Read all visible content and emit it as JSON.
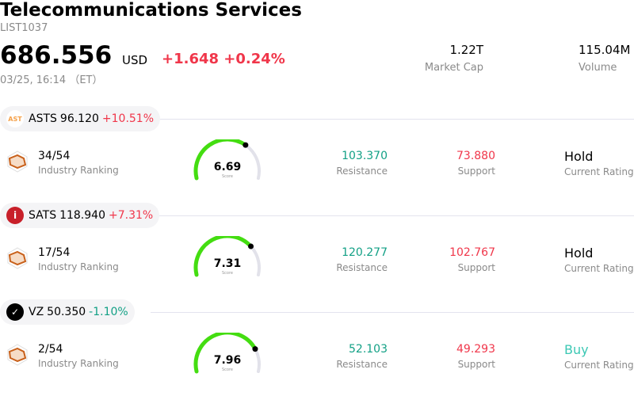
{
  "header": {
    "title": "Telecommunications Services",
    "code": "LIST1037",
    "price": "686.556",
    "currency": "USD",
    "change": "+1.648 +0.24%",
    "time": "03/25, 16:14 （ET）",
    "market_cap": "1.22T",
    "market_cap_label": "Market Cap",
    "volume": "115.04M",
    "volume_label": "Volume"
  },
  "colors": {
    "up": "#f0364a",
    "down": "#12a085",
    "gauge": "#44dd11",
    "gauge_track": "#e2e2ea",
    "buy": "#3cc8b4"
  },
  "labels": {
    "industry_ranking": "Industry Ranking",
    "score": "Score",
    "resistance": "Resistance",
    "support": "Support",
    "current_rating": "Current Rating"
  },
  "stocks": [
    {
      "ticker": "ASTS",
      "price": "96.120",
      "change": "+10.51%",
      "direction": "up",
      "logo": "AST",
      "rank": "34/54",
      "score": "6.69",
      "score_value": 6.69,
      "resistance": "103.370",
      "support": "73.880",
      "rating": "Hold"
    },
    {
      "ticker": "SATS",
      "price": "118.940",
      "change": "+7.31%",
      "direction": "up",
      "logo": "i",
      "rank": "17/54",
      "score": "7.31",
      "score_value": 7.31,
      "resistance": "120.277",
      "support": "102.767",
      "rating": "Hold"
    },
    {
      "ticker": "VZ",
      "price": "50.350",
      "change": "-1.10%",
      "direction": "down",
      "logo": "✓",
      "rank": "2/54",
      "score": "7.96",
      "score_value": 7.96,
      "resistance": "52.103",
      "support": "49.293",
      "rating": "Buy"
    }
  ]
}
